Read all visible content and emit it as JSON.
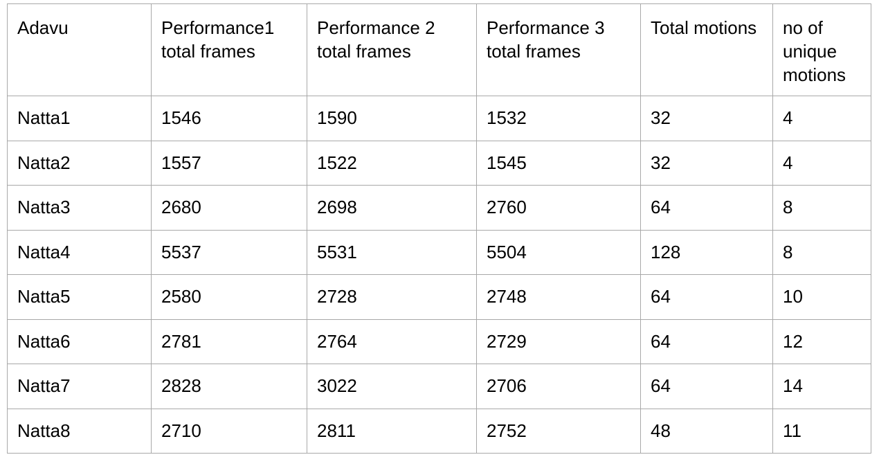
{
  "table": {
    "headers": [
      "Adavu",
      "Performance1 total frames",
      "Performance 2 total frames",
      "Performance 3 total frames",
      "Total motions",
      "no of unique motions"
    ],
    "rows": [
      [
        "Natta1",
        "1546",
        "1590",
        "1532",
        "32",
        "4"
      ],
      [
        "Natta2",
        "1557",
        "1522",
        "1545",
        "32",
        "4"
      ],
      [
        "Natta3",
        "2680",
        "2698",
        "2760",
        "64",
        "8"
      ],
      [
        "Natta4",
        "5537",
        "5531",
        "5504",
        "128",
        "8"
      ],
      [
        "Natta5",
        "2580",
        "2728",
        "2748",
        "64",
        "10"
      ],
      [
        "Natta6",
        "2781",
        "2764",
        "2729",
        "64",
        "12"
      ],
      [
        "Natta7",
        "2828",
        "3022",
        "2706",
        "64",
        "14"
      ],
      [
        "Natta8",
        "2710",
        "2811",
        "2752",
        "48",
        "11"
      ]
    ]
  }
}
